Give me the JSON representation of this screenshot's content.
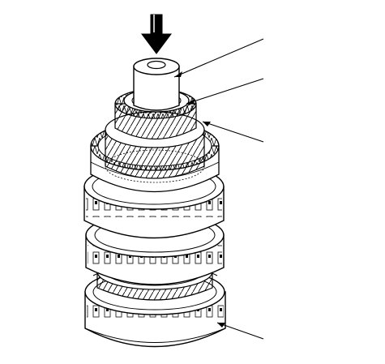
{
  "figure": {
    "caption": "",
    "callouts": [
      {
        "id": "spacer-collar"
      },
      {
        "id": "thrust-washer"
      },
      {
        "id": "gear-assembly"
      },
      {
        "id": "clutch-hub-bottom"
      }
    ]
  },
  "colors": {
    "line": "#000000",
    "fill": "#ffffff",
    "arrow": "#000000"
  },
  "icons": {
    "press-arrow": "downward-press-arrow-icon"
  }
}
